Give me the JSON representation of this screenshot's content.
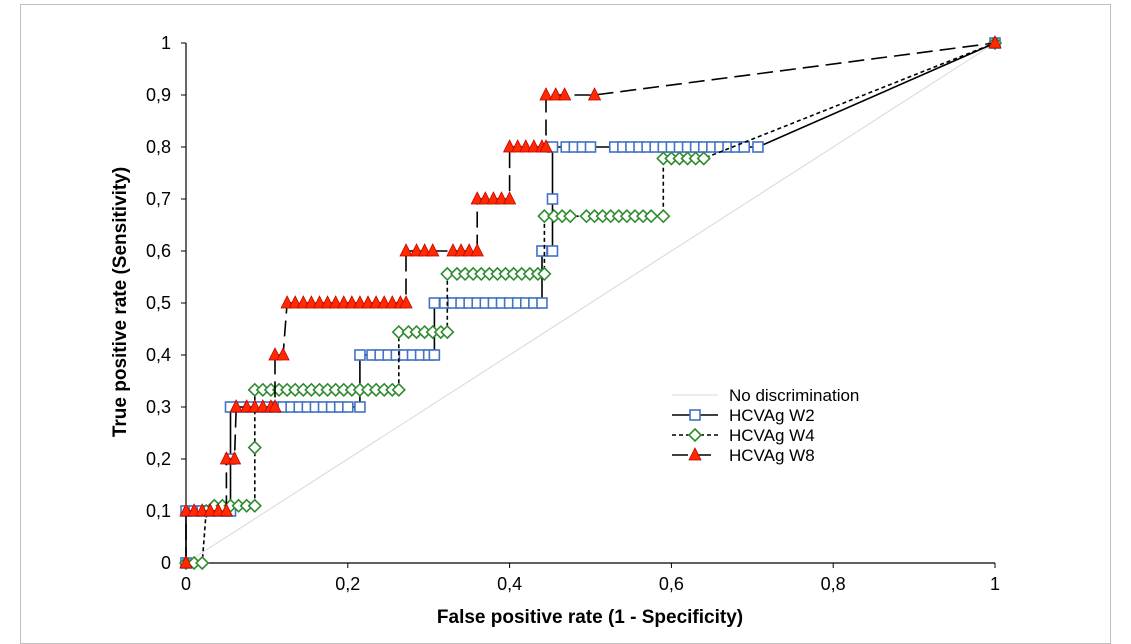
{
  "chart_data": {
    "type": "line",
    "title": "",
    "xlabel": "False positive rate (1 - Specificity)",
    "ylabel": "True positive rate (Sensitivity)",
    "xlim": [
      0,
      1
    ],
    "ylim": [
      0,
      1
    ],
    "x_ticks": [
      "0",
      "0,2",
      "0,4",
      "0,6",
      "0,8",
      "1"
    ],
    "y_ticks": [
      "0",
      "0,1",
      "0,2",
      "0,3",
      "0,4",
      "0,5",
      "0,6",
      "0,7",
      "0,8",
      "0,9",
      "1"
    ],
    "grid": false,
    "legend_position": "right",
    "series": [
      {
        "name": "No discrimination",
        "color": "#d9d9d9",
        "line": "solid",
        "marker": "none",
        "points": [
          [
            0,
            0
          ],
          [
            1,
            1
          ]
        ]
      },
      {
        "name": "HCVAg W2",
        "color": "#000000",
        "marker_color": "#4472c4",
        "line": "solid",
        "marker": "square",
        "points": [
          [
            0,
            0
          ],
          [
            0,
            0.1
          ],
          [
            0.01,
            0.1
          ],
          [
            0.02,
            0.1
          ],
          [
            0.03,
            0.1
          ],
          [
            0.04,
            0.1
          ],
          [
            0.05,
            0.1
          ],
          [
            0.055,
            0.1
          ],
          [
            0.055,
            0.2
          ],
          [
            0.055,
            0.3
          ],
          [
            0.07,
            0.3
          ],
          [
            0.08,
            0.3
          ],
          [
            0.09,
            0.3
          ],
          [
            0.1,
            0.3
          ],
          [
            0.11,
            0.3
          ],
          [
            0.12,
            0.3
          ],
          [
            0.13,
            0.3
          ],
          [
            0.14,
            0.3
          ],
          [
            0.15,
            0.3
          ],
          [
            0.16,
            0.3
          ],
          [
            0.17,
            0.3
          ],
          [
            0.18,
            0.3
          ],
          [
            0.19,
            0.3
          ],
          [
            0.2,
            0.3
          ],
          [
            0.215,
            0.3
          ],
          [
            0.215,
            0.4
          ],
          [
            0.23,
            0.4
          ],
          [
            0.24,
            0.4
          ],
          [
            0.25,
            0.4
          ],
          [
            0.26,
            0.4
          ],
          [
            0.27,
            0.4
          ],
          [
            0.28,
            0.4
          ],
          [
            0.29,
            0.4
          ],
          [
            0.3,
            0.4
          ],
          [
            0.307,
            0.4
          ],
          [
            0.307,
            0.5
          ],
          [
            0.32,
            0.5
          ],
          [
            0.33,
            0.5
          ],
          [
            0.34,
            0.5
          ],
          [
            0.35,
            0.5
          ],
          [
            0.36,
            0.5
          ],
          [
            0.37,
            0.5
          ],
          [
            0.38,
            0.5
          ],
          [
            0.39,
            0.5
          ],
          [
            0.4,
            0.5
          ],
          [
            0.41,
            0.5
          ],
          [
            0.42,
            0.5
          ],
          [
            0.43,
            0.5
          ],
          [
            0.44,
            0.5
          ],
          [
            0.44,
            0.6
          ],
          [
            0.453,
            0.6
          ],
          [
            0.453,
            0.7
          ],
          [
            0.453,
            0.8
          ],
          [
            0.47,
            0.8
          ],
          [
            0.48,
            0.8
          ],
          [
            0.49,
            0.8
          ],
          [
            0.5,
            0.8
          ],
          [
            0.53,
            0.8
          ],
          [
            0.54,
            0.8
          ],
          [
            0.55,
            0.8
          ],
          [
            0.56,
            0.8
          ],
          [
            0.57,
            0.8
          ],
          [
            0.58,
            0.8
          ],
          [
            0.59,
            0.8
          ],
          [
            0.6,
            0.8
          ],
          [
            0.61,
            0.8
          ],
          [
            0.62,
            0.8
          ],
          [
            0.63,
            0.8
          ],
          [
            0.64,
            0.8
          ],
          [
            0.65,
            0.8
          ],
          [
            0.66,
            0.8
          ],
          [
            0.67,
            0.8
          ],
          [
            0.68,
            0.8
          ],
          [
            0.69,
            0.8
          ],
          [
            0.707,
            0.8
          ],
          [
            1,
            1
          ]
        ]
      },
      {
        "name": "HCVAg W4",
        "color": "#000000",
        "marker_color": "#2e8b2e",
        "line": "dotted",
        "marker": "diamond",
        "points": [
          [
            0,
            0
          ],
          [
            0.01,
            0
          ],
          [
            0.02,
            0
          ],
          [
            0.025,
            0.1
          ],
          [
            0.035,
            0.11
          ],
          [
            0.045,
            0.11
          ],
          [
            0.055,
            0.11
          ],
          [
            0.065,
            0.11
          ],
          [
            0.075,
            0.11
          ],
          [
            0.085,
            0.11
          ],
          [
            0.085,
            0.222
          ],
          [
            0.085,
            0.333
          ],
          [
            0.095,
            0.333
          ],
          [
            0.105,
            0.333
          ],
          [
            0.115,
            0.333
          ],
          [
            0.125,
            0.333
          ],
          [
            0.135,
            0.333
          ],
          [
            0.145,
            0.333
          ],
          [
            0.155,
            0.333
          ],
          [
            0.165,
            0.333
          ],
          [
            0.175,
            0.333
          ],
          [
            0.185,
            0.333
          ],
          [
            0.195,
            0.333
          ],
          [
            0.205,
            0.333
          ],
          [
            0.215,
            0.333
          ],
          [
            0.225,
            0.333
          ],
          [
            0.235,
            0.333
          ],
          [
            0.245,
            0.333
          ],
          [
            0.255,
            0.333
          ],
          [
            0.263,
            0.333
          ],
          [
            0.263,
            0.444
          ],
          [
            0.275,
            0.444
          ],
          [
            0.285,
            0.444
          ],
          [
            0.295,
            0.444
          ],
          [
            0.305,
            0.444
          ],
          [
            0.315,
            0.444
          ],
          [
            0.323,
            0.444
          ],
          [
            0.323,
            0.556
          ],
          [
            0.335,
            0.556
          ],
          [
            0.345,
            0.556
          ],
          [
            0.355,
            0.556
          ],
          [
            0.365,
            0.556
          ],
          [
            0.375,
            0.556
          ],
          [
            0.385,
            0.556
          ],
          [
            0.395,
            0.556
          ],
          [
            0.405,
            0.556
          ],
          [
            0.415,
            0.556
          ],
          [
            0.425,
            0.556
          ],
          [
            0.435,
            0.556
          ],
          [
            0.443,
            0.556
          ],
          [
            0.443,
            0.667
          ],
          [
            0.455,
            0.667
          ],
          [
            0.465,
            0.667
          ],
          [
            0.475,
            0.667
          ],
          [
            0.495,
            0.667
          ],
          [
            0.505,
            0.667
          ],
          [
            0.515,
            0.667
          ],
          [
            0.525,
            0.667
          ],
          [
            0.535,
            0.667
          ],
          [
            0.545,
            0.667
          ],
          [
            0.555,
            0.667
          ],
          [
            0.565,
            0.667
          ],
          [
            0.575,
            0.667
          ],
          [
            0.59,
            0.667
          ],
          [
            0.59,
            0.778
          ],
          [
            0.6,
            0.778
          ],
          [
            0.61,
            0.778
          ],
          [
            0.62,
            0.778
          ],
          [
            0.63,
            0.778
          ],
          [
            0.64,
            0.778
          ],
          [
            1,
            1
          ]
        ]
      },
      {
        "name": "HCVAg W8",
        "color": "#000000",
        "marker_color": "#ff2a00",
        "line": "dashed",
        "marker": "triangle",
        "points": [
          [
            0,
            0
          ],
          [
            0,
            0.1
          ],
          [
            0.01,
            0.1
          ],
          [
            0.02,
            0.1
          ],
          [
            0.03,
            0.1
          ],
          [
            0.04,
            0.1
          ],
          [
            0.05,
            0.1
          ],
          [
            0.05,
            0.2
          ],
          [
            0.06,
            0.2
          ],
          [
            0.062,
            0.3
          ],
          [
            0.075,
            0.3
          ],
          [
            0.085,
            0.3
          ],
          [
            0.095,
            0.3
          ],
          [
            0.105,
            0.3
          ],
          [
            0.11,
            0.3
          ],
          [
            0.11,
            0.4
          ],
          [
            0.12,
            0.4
          ],
          [
            0.125,
            0.5
          ],
          [
            0.135,
            0.5
          ],
          [
            0.145,
            0.5
          ],
          [
            0.155,
            0.5
          ],
          [
            0.165,
            0.5
          ],
          [
            0.175,
            0.5
          ],
          [
            0.185,
            0.5
          ],
          [
            0.195,
            0.5
          ],
          [
            0.205,
            0.5
          ],
          [
            0.215,
            0.5
          ],
          [
            0.225,
            0.5
          ],
          [
            0.235,
            0.5
          ],
          [
            0.245,
            0.5
          ],
          [
            0.255,
            0.5
          ],
          [
            0.265,
            0.5
          ],
          [
            0.272,
            0.5
          ],
          [
            0.272,
            0.6
          ],
          [
            0.285,
            0.6
          ],
          [
            0.295,
            0.6
          ],
          [
            0.305,
            0.6
          ],
          [
            0.33,
            0.6
          ],
          [
            0.34,
            0.6
          ],
          [
            0.35,
            0.6
          ],
          [
            0.36,
            0.6
          ],
          [
            0.36,
            0.7
          ],
          [
            0.37,
            0.7
          ],
          [
            0.38,
            0.7
          ],
          [
            0.39,
            0.7
          ],
          [
            0.4,
            0.7
          ],
          [
            0.4,
            0.8
          ],
          [
            0.41,
            0.8
          ],
          [
            0.42,
            0.8
          ],
          [
            0.43,
            0.8
          ],
          [
            0.44,
            0.8
          ],
          [
            0.445,
            0.8
          ],
          [
            0.445,
            0.9
          ],
          [
            0.457,
            0.9
          ],
          [
            0.468,
            0.9
          ],
          [
            0.505,
            0.9
          ],
          [
            1,
            1
          ]
        ]
      }
    ]
  }
}
